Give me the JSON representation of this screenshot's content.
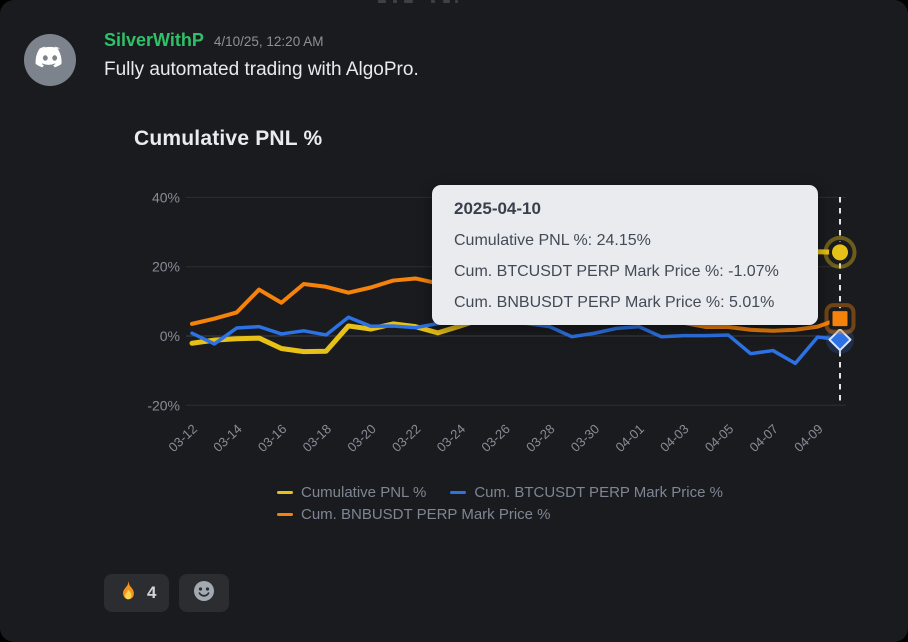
{
  "message": {
    "username": "SilverWithP",
    "timestamp": "4/10/25, 12:20 AM",
    "text": "Fully automated trading with AlgoPro.",
    "avatar_icon": "discord-logo-icon",
    "username_color": "#2ec168"
  },
  "chart_data": {
    "type": "line",
    "title": "Cumulative PNL %",
    "x": [
      "03-12",
      "03-13",
      "03-14",
      "03-15",
      "03-16",
      "03-17",
      "03-18",
      "03-19",
      "03-20",
      "03-21",
      "03-22",
      "03-23",
      "03-24",
      "03-25",
      "03-26",
      "03-27",
      "03-28",
      "03-29",
      "03-30",
      "03-31",
      "04-01",
      "04-02",
      "04-03",
      "04-04",
      "04-05",
      "04-06",
      "04-07",
      "04-08",
      "04-09",
      "04-10"
    ],
    "xtick_labels": [
      "03-12",
      "03-14",
      "03-16",
      "03-18",
      "03-20",
      "03-22",
      "03-24",
      "03-26",
      "03-28",
      "03-30",
      "04-01",
      "04-03",
      "04-05",
      "04-07",
      "04-09"
    ],
    "yticks": [
      40,
      20,
      0,
      -20
    ],
    "ytick_labels": [
      "40%",
      "20%",
      "0%",
      "-20%"
    ],
    "ylim": [
      -24,
      44
    ],
    "grid": true,
    "cursor_x": "04-10",
    "series": [
      {
        "name": "Cumulative PNL %",
        "color": "#e7c117",
        "marker": "circle",
        "values": [
          -2.1,
          -1.2,
          -0.8,
          -0.6,
          -3.6,
          -4.5,
          -4.4,
          2.9,
          2.0,
          3.5,
          2.7,
          0.9,
          2.9,
          5.0,
          7.0,
          9.0,
          11.0,
          12.5,
          14.0,
          15.5,
          16.5,
          17.5,
          18.5,
          19.5,
          20.5,
          21.5,
          22.5,
          23.5,
          24.3,
          24.15
        ]
      },
      {
        "name": "Cum. BTCUSDT PERP Mark Price %",
        "color": "#2d72e5",
        "marker": "diamond",
        "values": [
          0.8,
          -2.3,
          2.3,
          2.7,
          0.6,
          1.5,
          0.3,
          5.4,
          2.8,
          2.9,
          2.4,
          3.6,
          4.2,
          3.8,
          4.0,
          3.6,
          2.7,
          -0.2,
          0.8,
          2.2,
          2.7,
          -0.2,
          0.1,
          0.1,
          0.3,
          -5.1,
          -4.2,
          -7.9,
          -0.3,
          -1.07
        ]
      },
      {
        "name": "Cum. BNBUSDT PERP Mark Price %",
        "color": "#f5820b",
        "marker": "square",
        "values": [
          3.5,
          5.0,
          6.8,
          13.4,
          9.6,
          15.0,
          14.2,
          12.5,
          14.0,
          16.0,
          16.6,
          15.2,
          13.5,
          12.0,
          11.0,
          9.5,
          8.0,
          7.0,
          6.0,
          5.5,
          5.0,
          4.5,
          3.8,
          2.6,
          2.6,
          1.8,
          1.5,
          1.8,
          2.7,
          5.01
        ]
      }
    ],
    "legend_position": "bottom"
  },
  "tooltip": {
    "date": "2025-04-10",
    "rows": [
      {
        "label": "Cumulative PNL %",
        "value": "24.15%"
      },
      {
        "label": "Cum. BTCUSDT PERP Mark Price %",
        "value": "-1.07%"
      },
      {
        "label": "Cum. BNBUSDT PERP Mark Price %",
        "value": "5.01%"
      }
    ]
  },
  "reactions": {
    "items": [
      {
        "icon": "fire-emoji",
        "count": "4"
      }
    ],
    "add_button_icon": "add-reaction-smiley-icon"
  },
  "colors": {
    "surface": "#1a1b1e",
    "grid_line": "#2c2e32",
    "zero_line": "#3f4246",
    "axis_text": "#868c97",
    "legend_text": "#7e8694",
    "tooltip_bg": "#e9ebee",
    "cursor_line": "#e6e6e6"
  }
}
